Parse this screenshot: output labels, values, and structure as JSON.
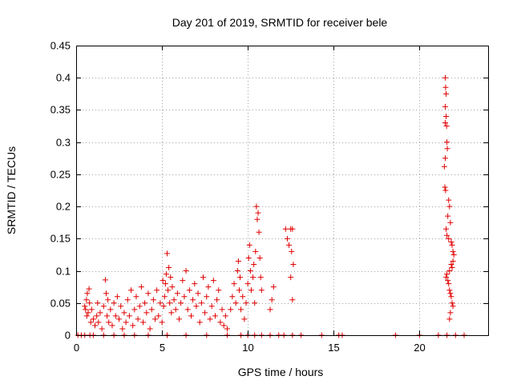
{
  "chart_data": {
    "type": "scatter",
    "title": "Day 201 of 2019, SRMTID for receiver bele",
    "xlabel": "GPS time / hours",
    "ylabel": "SRMTID / TECUs",
    "xlim": [
      0,
      24
    ],
    "ylim": [
      0,
      0.45
    ],
    "xticks": [
      0,
      5,
      10,
      15,
      20
    ],
    "xtick_labels": [
      "0",
      "5",
      "10",
      "15",
      "20"
    ],
    "yticks": [
      0,
      0.05,
      0.1,
      0.15,
      0.2,
      0.25,
      0.3,
      0.35,
      0.4,
      0.45
    ],
    "ytick_labels": [
      "0",
      "0.05",
      "0.1",
      "0.15",
      "0.2",
      "0.25",
      "0.3",
      "0.35",
      "0.4",
      "0.45"
    ],
    "grid": true,
    "marker": "+",
    "color": "#e00000",
    "series": [
      {
        "name": "SRMTID",
        "points": [
          [
            0.1,
            0
          ],
          [
            0.3,
            0
          ],
          [
            0.5,
            0
          ],
          [
            0.8,
            0
          ],
          [
            1.0,
            0
          ],
          [
            1.6,
            0
          ],
          [
            2.2,
            0
          ],
          [
            2.8,
            0
          ],
          [
            3.4,
            0
          ],
          [
            4.2,
            0
          ],
          [
            5.3,
            0
          ],
          [
            6.4,
            0
          ],
          [
            7.6,
            0
          ],
          [
            8.8,
            0
          ],
          [
            9.6,
            0
          ],
          [
            10.0,
            0
          ],
          [
            10.4,
            0
          ],
          [
            10.8,
            0
          ],
          [
            11.3,
            0
          ],
          [
            11.8,
            0
          ],
          [
            12.1,
            0
          ],
          [
            12.6,
            0
          ],
          [
            13.1,
            0
          ],
          [
            14.3,
            0
          ],
          [
            15.3,
            0
          ],
          [
            15.5,
            0
          ],
          [
            18.6,
            0
          ],
          [
            20.0,
            0
          ],
          [
            21.1,
            0
          ],
          [
            21.6,
            0
          ],
          [
            22.1,
            0
          ],
          [
            22.6,
            0
          ],
          [
            0.5,
            0.045
          ],
          [
            0.55,
            0.04
          ],
          [
            0.6,
            0.055
          ],
          [
            0.62,
            0.03
          ],
          [
            0.65,
            0.065
          ],
          [
            0.7,
            0.035
          ],
          [
            0.75,
            0.072
          ],
          [
            0.78,
            0.05
          ],
          [
            0.85,
            0.02
          ],
          [
            0.9,
            0.04
          ],
          [
            1.0,
            0.025
          ],
          [
            1.1,
            0.015
          ],
          [
            1.2,
            0.03
          ],
          [
            1.25,
            0.05
          ],
          [
            1.3,
            0.02
          ],
          [
            1.4,
            0.035
          ],
          [
            1.5,
            0.01
          ],
          [
            1.6,
            0.045
          ],
          [
            1.7,
            0.086
          ],
          [
            1.75,
            0.065
          ],
          [
            1.8,
            0.03
          ],
          [
            1.85,
            0.055
          ],
          [
            1.9,
            0.02
          ],
          [
            2.0,
            0.04
          ],
          [
            2.1,
            0.015
          ],
          [
            2.2,
            0.05
          ],
          [
            2.3,
            0.03
          ],
          [
            2.4,
            0.06
          ],
          [
            2.5,
            0.025
          ],
          [
            2.6,
            0.045
          ],
          [
            2.7,
            0.01
          ],
          [
            2.8,
            0.035
          ],
          [
            2.9,
            0.02
          ],
          [
            3.0,
            0.055
          ],
          [
            3.1,
            0.03
          ],
          [
            3.2,
            0.07
          ],
          [
            3.3,
            0.015
          ],
          [
            3.4,
            0.04
          ],
          [
            3.5,
            0.06
          ],
          [
            3.6,
            0.025
          ],
          [
            3.7,
            0.045
          ],
          [
            3.8,
            0.075
          ],
          [
            3.9,
            0.02
          ],
          [
            4.0,
            0.05
          ],
          [
            4.1,
            0.035
          ],
          [
            4.2,
            0.065
          ],
          [
            4.3,
            0.01
          ],
          [
            4.4,
            0.04
          ],
          [
            4.5,
            0.055
          ],
          [
            4.6,
            0.025
          ],
          [
            4.7,
            0.07
          ],
          [
            4.8,
            0.03
          ],
          [
            4.9,
            0.05
          ],
          [
            5.0,
            0.02
          ],
          [
            5.05,
            0.085
          ],
          [
            5.1,
            0.045
          ],
          [
            5.15,
            0.06
          ],
          [
            5.2,
            0.08
          ],
          [
            5.25,
            0.095
          ],
          [
            5.3,
            0.127
          ],
          [
            5.35,
            0.07
          ],
          [
            5.4,
            0.105
          ],
          [
            5.45,
            0.05
          ],
          [
            5.5,
            0.09
          ],
          [
            5.55,
            0.035
          ],
          [
            5.6,
            0.075
          ],
          [
            5.7,
            0.055
          ],
          [
            5.8,
            0.04
          ],
          [
            5.9,
            0.065
          ],
          [
            6.0,
            0.025
          ],
          [
            6.1,
            0.05
          ],
          [
            6.2,
            0.085
          ],
          [
            6.3,
            0.06
          ],
          [
            6.4,
            0.1
          ],
          [
            6.5,
            0.04
          ],
          [
            6.6,
            0.07
          ],
          [
            6.7,
            0.03
          ],
          [
            6.8,
            0.055
          ],
          [
            6.9,
            0.08
          ],
          [
            7.0,
            0.045
          ],
          [
            7.1,
            0.065
          ],
          [
            7.2,
            0.02
          ],
          [
            7.3,
            0.05
          ],
          [
            7.4,
            0.09
          ],
          [
            7.5,
            0.035
          ],
          [
            7.6,
            0.06
          ],
          [
            7.7,
            0.075
          ],
          [
            7.8,
            0.025
          ],
          [
            7.9,
            0.045
          ],
          [
            8.0,
            0.085
          ],
          [
            8.1,
            0.03
          ],
          [
            8.2,
            0.055
          ],
          [
            8.3,
            0.07
          ],
          [
            8.4,
            0.02
          ],
          [
            8.5,
            0.04
          ],
          [
            8.6,
            0.015
          ],
          [
            8.7,
            0.03
          ],
          [
            8.8,
            0.01
          ],
          [
            9.0,
            0.04
          ],
          [
            9.1,
            0.06
          ],
          [
            9.2,
            0.08
          ],
          [
            9.3,
            0.05
          ],
          [
            9.4,
            0.1
          ],
          [
            9.45,
            0.115
          ],
          [
            9.5,
            0.07
          ],
          [
            9.55,
            0.09
          ],
          [
            9.6,
            0.04
          ],
          [
            9.7,
            0.06
          ],
          [
            9.8,
            0.025
          ],
          [
            9.9,
            0.05
          ],
          [
            10.0,
            0.08
          ],
          [
            10.05,
            0.12
          ],
          [
            10.1,
            0.14
          ],
          [
            10.15,
            0.1
          ],
          [
            10.2,
            0.07
          ],
          [
            10.3,
            0.09
          ],
          [
            10.35,
            0.11
          ],
          [
            10.4,
            0.05
          ],
          [
            10.45,
            0.13
          ],
          [
            10.5,
            0.2
          ],
          [
            10.55,
            0.18
          ],
          [
            10.6,
            0.19
          ],
          [
            10.65,
            0.16
          ],
          [
            10.7,
            0.12
          ],
          [
            10.75,
            0.09
          ],
          [
            10.8,
            0.07
          ],
          [
            11.3,
            0.04
          ],
          [
            11.4,
            0.055
          ],
          [
            11.5,
            0.075
          ],
          [
            12.2,
            0.165
          ],
          [
            12.3,
            0.15
          ],
          [
            12.4,
            0.14
          ],
          [
            12.5,
            0.165
          ],
          [
            12.55,
            0.13
          ],
          [
            12.6,
            0.165
          ],
          [
            12.65,
            0.11
          ],
          [
            12.5,
            0.09
          ],
          [
            12.6,
            0.055
          ],
          [
            21.5,
            0.4
          ],
          [
            21.52,
            0.385
          ],
          [
            21.55,
            0.375
          ],
          [
            21.5,
            0.355
          ],
          [
            21.55,
            0.34
          ],
          [
            21.5,
            0.33
          ],
          [
            21.58,
            0.325
          ],
          [
            21.6,
            0.3
          ],
          [
            21.62,
            0.29
          ],
          [
            21.5,
            0.275
          ],
          [
            21.45,
            0.262
          ],
          [
            21.48,
            0.23
          ],
          [
            21.52,
            0.225
          ],
          [
            21.7,
            0.21
          ],
          [
            21.75,
            0.2
          ],
          [
            21.65,
            0.185
          ],
          [
            21.8,
            0.175
          ],
          [
            21.55,
            0.165
          ],
          [
            21.6,
            0.155
          ],
          [
            21.7,
            0.15
          ],
          [
            21.85,
            0.145
          ],
          [
            21.9,
            0.14
          ],
          [
            21.95,
            0.13
          ],
          [
            22.0,
            0.125
          ],
          [
            21.95,
            0.115
          ],
          [
            21.85,
            0.11
          ],
          [
            21.9,
            0.105
          ],
          [
            21.75,
            0.1
          ],
          [
            21.6,
            0.095
          ],
          [
            21.55,
            0.09
          ],
          [
            21.65,
            0.085
          ],
          [
            21.7,
            0.08
          ],
          [
            21.75,
            0.07
          ],
          [
            21.8,
            0.065
          ],
          [
            21.85,
            0.06
          ],
          [
            21.9,
            0.05
          ],
          [
            21.95,
            0.045
          ],
          [
            21.8,
            0.035
          ],
          [
            21.75,
            0.025
          ]
        ]
      }
    ]
  }
}
